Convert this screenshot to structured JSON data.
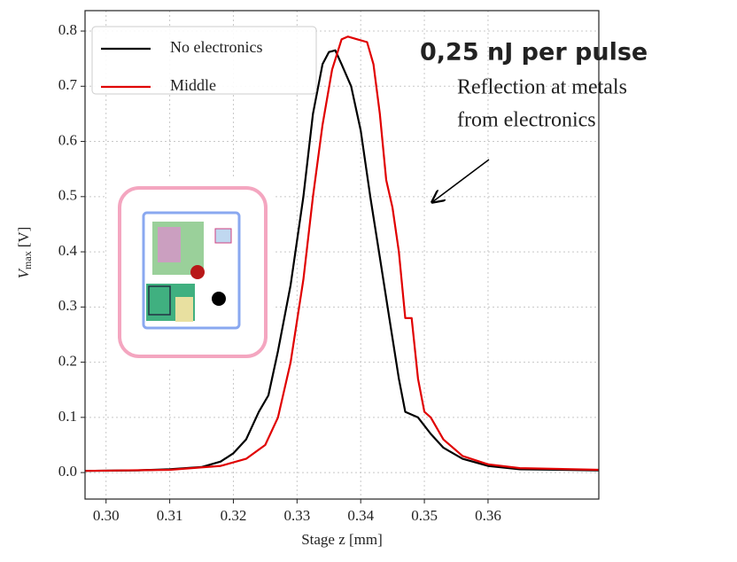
{
  "chart_data": {
    "type": "line",
    "xlabel": "Stage z [mm]",
    "ylabel": {
      "main": "V",
      "sub": "max",
      "unit": "[V]"
    },
    "xlim": [
      0.2967,
      0.3774
    ],
    "ylim": [
      -0.048,
      0.837
    ],
    "xticks": [
      {
        "value": 0.3,
        "label": "0.30"
      },
      0.31,
      0.32,
      0.33,
      0.34,
      0.35,
      0.36
    ],
    "yticks": [
      {
        "value": 0,
        "label": "0.0"
      },
      0.1,
      0.2,
      0.3,
      0.4,
      0.5,
      0.6,
      0.7,
      0.8
    ],
    "grid": true,
    "legend": "upper left",
    "annotations": {
      "headline": "0,25 nJ per pulse",
      "note": [
        "Reflection at metals",
        "from electronics"
      ],
      "headline_color": "#c00000"
    },
    "series": [
      {
        "name": "No electronics",
        "color": "#000000",
        "x": [
          0.2967,
          0.305,
          0.31,
          0.315,
          0.318,
          0.32,
          0.322,
          0.324,
          0.3255,
          0.327,
          0.329,
          0.331,
          0.3325,
          0.334,
          0.335,
          0.336,
          0.337,
          0.3385,
          0.34,
          0.3415,
          0.343,
          0.3445,
          0.346,
          0.347,
          0.349,
          0.351,
          0.353,
          0.356,
          0.36,
          0.365,
          0.3774
        ],
        "values": [
          0.003,
          0.004,
          0.006,
          0.01,
          0.02,
          0.035,
          0.06,
          0.11,
          0.14,
          0.22,
          0.34,
          0.5,
          0.65,
          0.74,
          0.762,
          0.765,
          0.74,
          0.7,
          0.62,
          0.5,
          0.39,
          0.28,
          0.17,
          0.11,
          0.1,
          0.07,
          0.045,
          0.025,
          0.012,
          0.006,
          0.004
        ]
      },
      {
        "name": "Middle",
        "color": "#e00000",
        "x": [
          0.2967,
          0.31,
          0.318,
          0.322,
          0.325,
          0.327,
          0.329,
          0.331,
          0.3325,
          0.334,
          0.3355,
          0.337,
          0.338,
          0.3395,
          0.341,
          0.342,
          0.343,
          0.344,
          0.345,
          0.346,
          0.347,
          0.348,
          0.349,
          0.35,
          0.351,
          0.353,
          0.356,
          0.36,
          0.365,
          0.3774
        ],
        "values": [
          0.003,
          0.005,
          0.012,
          0.025,
          0.05,
          0.1,
          0.2,
          0.35,
          0.5,
          0.63,
          0.73,
          0.785,
          0.79,
          0.785,
          0.78,
          0.74,
          0.65,
          0.53,
          0.48,
          0.4,
          0.28,
          0.28,
          0.17,
          0.11,
          0.1,
          0.06,
          0.03,
          0.015,
          0.008,
          0.005
        ]
      }
    ]
  }
}
